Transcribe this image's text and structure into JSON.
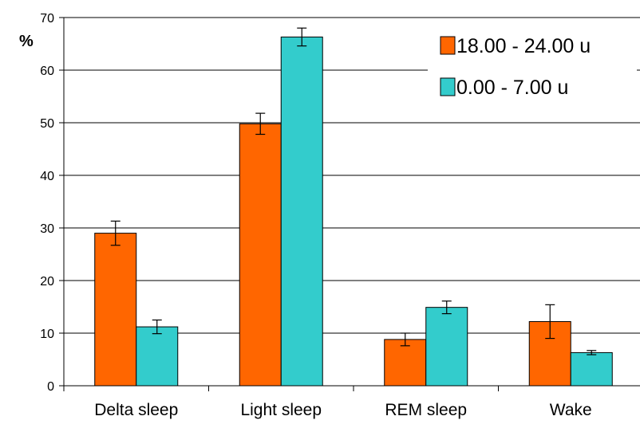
{
  "chart_data": {
    "type": "bar",
    "categories": [
      "Delta sleep",
      "Light sleep",
      "REM sleep",
      "Wake"
    ],
    "series": [
      {
        "name": "18.00 - 24.00 u",
        "color": "#ff6600",
        "values": [
          29,
          49.8,
          8.8,
          12.2
        ],
        "error": [
          2.3,
          2.0,
          1.2,
          3.2
        ]
      },
      {
        "name": "0.00 - 7.00 u",
        "color": "#33cccc",
        "values": [
          11.2,
          66.3,
          14.9,
          6.3
        ],
        "error": [
          1.3,
          1.7,
          1.2,
          0.4
        ]
      }
    ],
    "ylabel": "%",
    "ylim": [
      0,
      70
    ],
    "yticks": [
      0,
      10,
      20,
      30,
      40,
      50,
      60,
      70
    ],
    "grid": true,
    "legend": "top-right"
  }
}
